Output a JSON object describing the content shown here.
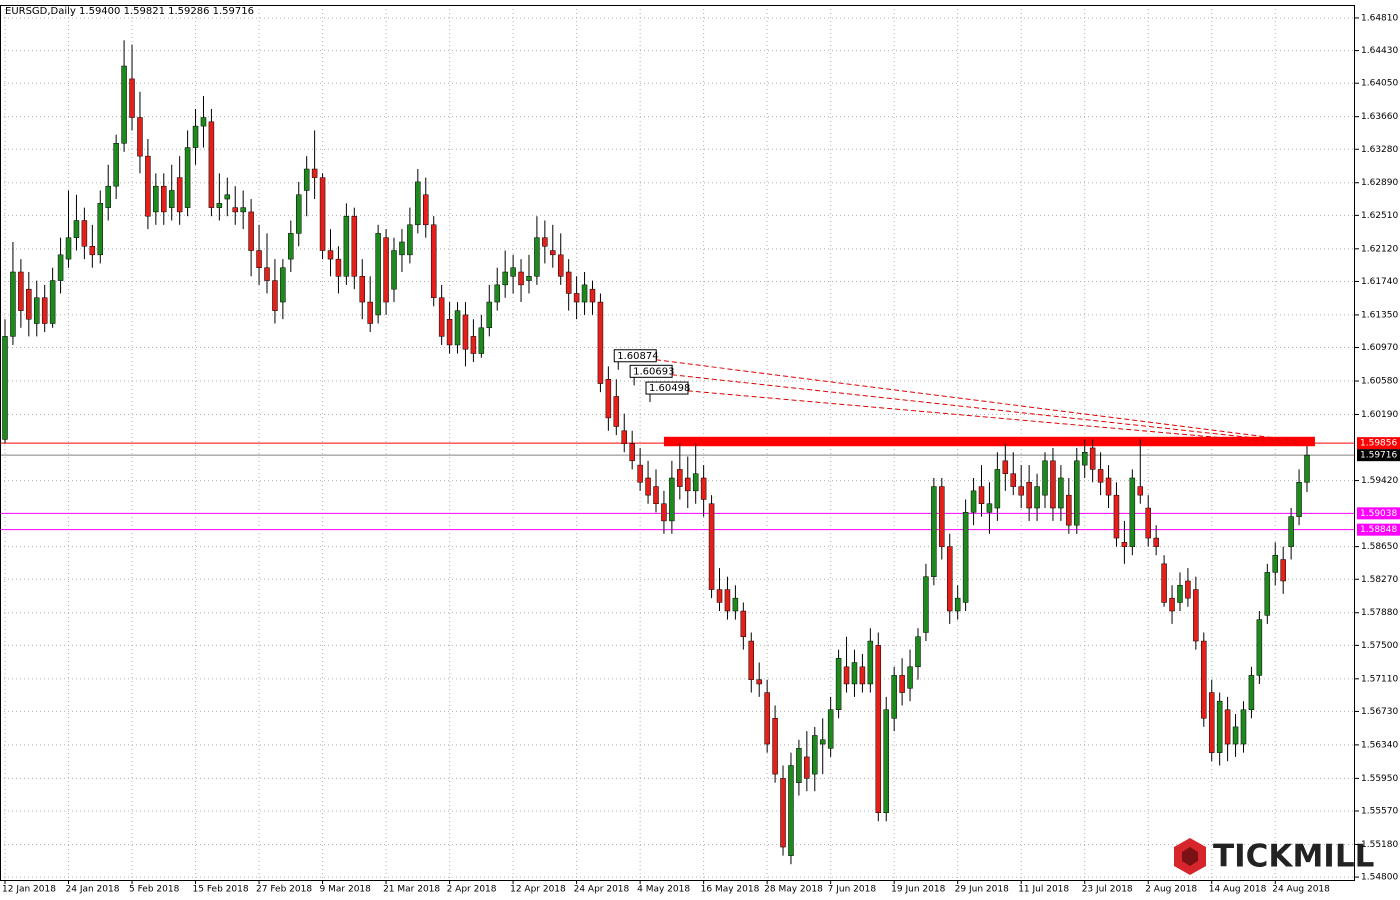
{
  "chart_data": {
    "type": "candlestick",
    "title": "EURSGD,Daily  1.59400 1.59821 1.59286 1.59716",
    "watermark": "TICKMILL",
    "up_color": "#1e8a1e",
    "down_color": "#e4201b",
    "grid": true,
    "ylim": [
      1.54766,
      1.64961
    ],
    "yticks": [
      {
        "value": 1.6481,
        "label": "1.64810"
      },
      {
        "value": 1.6443,
        "label": "1.64430"
      },
      {
        "value": 1.6405,
        "label": "1.64050"
      },
      {
        "value": 1.6366,
        "label": "1.63660"
      },
      {
        "value": 1.6328,
        "label": "1.63280"
      },
      {
        "value": 1.6289,
        "label": "1.62890"
      },
      {
        "value": 1.6251,
        "label": "1.62510"
      },
      {
        "value": 1.6212,
        "label": "1.62120"
      },
      {
        "value": 1.6174,
        "label": "1.61740"
      },
      {
        "value": 1.6135,
        "label": "1.61350"
      },
      {
        "value": 1.6097,
        "label": "1.60970"
      },
      {
        "value": 1.6058,
        "label": "1.60580"
      },
      {
        "value": 1.6019,
        "label": "1.60190"
      },
      {
        "value": 1.5942,
        "label": "1.59420"
      },
      {
        "value": 1.5865,
        "label": "1.58650"
      },
      {
        "value": 1.5827,
        "label": "1.58270"
      },
      {
        "value": 1.5788,
        "label": "1.57880"
      },
      {
        "value": 1.575,
        "label": "1.57500"
      },
      {
        "value": 1.5711,
        "label": "1.57110"
      },
      {
        "value": 1.5673,
        "label": "1.56730"
      },
      {
        "value": 1.5634,
        "label": "1.56340"
      },
      {
        "value": 1.5595,
        "label": "1.55950"
      },
      {
        "value": 1.5557,
        "label": "1.55570"
      },
      {
        "value": 1.5518,
        "label": "1.55180"
      },
      {
        "value": 1.548,
        "label": "1.54800"
      }
    ],
    "price_lines": [
      {
        "value": 1.59856,
        "color": "#ff0000"
      },
      {
        "value": 1.59716,
        "color": "#000000"
      },
      {
        "value": 1.59038,
        "color": "#ff00ff"
      },
      {
        "value": 1.58848,
        "color": "#ff00ff"
      }
    ],
    "trendlines": [
      {
        "label": 1.60874,
        "from": [
          78,
          1.60874
        ],
        "to": [
          163,
          1.5988
        ]
      },
      {
        "label": 1.60693,
        "from": [
          80,
          1.60693
        ],
        "to": [
          163,
          1.5986
        ]
      },
      {
        "label": 1.60498,
        "from": [
          82,
          1.60498
        ],
        "to": [
          163,
          1.5984
        ]
      }
    ],
    "zone": {
      "from": [
        83,
        1.5993
      ],
      "to": [
        165,
        1.5982
      ],
      "color": "#ff0000"
    },
    "categories": [
      "12 Jan 2018",
      null,
      null,
      null,
      null,
      null,
      null,
      null,
      "24 Jan 2018",
      null,
      null,
      null,
      null,
      null,
      null,
      null,
      "5 Feb 2018",
      null,
      null,
      null,
      null,
      null,
      null,
      null,
      "15 Feb 2018",
      null,
      null,
      null,
      null,
      null,
      null,
      null,
      "27 Feb 2018",
      null,
      null,
      null,
      null,
      null,
      null,
      null,
      "9 Mar 2018",
      null,
      null,
      null,
      null,
      null,
      null,
      null,
      "21 Mar 2018",
      null,
      null,
      null,
      null,
      null,
      null,
      null,
      "2 Apr 2018",
      null,
      null,
      null,
      null,
      null,
      null,
      null,
      "12 Apr 2018",
      null,
      null,
      null,
      null,
      null,
      null,
      null,
      "24 Apr 2018",
      null,
      null,
      null,
      null,
      null,
      null,
      null,
      "4 May 2018",
      null,
      null,
      null,
      null,
      null,
      null,
      null,
      "16 May 2018",
      null,
      null,
      null,
      null,
      null,
      null,
      null,
      "28 May 2018",
      null,
      null,
      null,
      null,
      null,
      null,
      null,
      "7 Jun 2018",
      null,
      null,
      null,
      null,
      null,
      null,
      null,
      "19 Jun 2018",
      null,
      null,
      null,
      null,
      null,
      null,
      null,
      "29 Jun 2018",
      null,
      null,
      null,
      null,
      null,
      null,
      null,
      "11 Jul 2018",
      null,
      null,
      null,
      null,
      null,
      null,
      null,
      "23 Jul 2018",
      null,
      null,
      null,
      null,
      null,
      null,
      null,
      "2 Aug 2018",
      null,
      null,
      null,
      null,
      null,
      null,
      null,
      "14 Aug 2018",
      null,
      null,
      null,
      null,
      null,
      null,
      null,
      "24 Aug 2018",
      null,
      null,
      null,
      null
    ],
    "ohlc": [
      [
        1.599,
        1.613,
        1.5985,
        1.611
      ],
      [
        1.611,
        1.622,
        1.61,
        1.6185
      ],
      [
        1.6185,
        1.62,
        1.612,
        1.614
      ],
      [
        1.6165,
        1.6185,
        1.611,
        1.613
      ],
      [
        1.6125,
        1.6175,
        1.611,
        1.6155
      ],
      [
        1.6155,
        1.617,
        1.6115,
        1.6125
      ],
      [
        1.6125,
        1.619,
        1.612,
        1.6175
      ],
      [
        1.6175,
        1.6225,
        1.616,
        1.6205
      ],
      [
        1.62,
        1.628,
        1.619,
        1.6225
      ],
      [
        1.6225,
        1.6275,
        1.621,
        1.6245
      ],
      [
        1.6245,
        1.626,
        1.62,
        1.6215
      ],
      [
        1.6215,
        1.624,
        1.619,
        1.6205
      ],
      [
        1.6205,
        1.628,
        1.6195,
        1.6265
      ],
      [
        1.626,
        1.631,
        1.6245,
        1.6285
      ],
      [
        1.6285,
        1.6345,
        1.627,
        1.6335
      ],
      [
        1.6335,
        1.6455,
        1.6325,
        1.6425
      ],
      [
        1.641,
        1.645,
        1.635,
        1.6365
      ],
      [
        1.6365,
        1.6395,
        1.63,
        1.632
      ],
      [
        1.632,
        1.634,
        1.6235,
        1.625
      ],
      [
        1.6255,
        1.63,
        1.624,
        1.6285
      ],
      [
        1.6285,
        1.63,
        1.624,
        1.6255
      ],
      [
        1.626,
        1.631,
        1.6245,
        1.628
      ],
      [
        1.6295,
        1.632,
        1.624,
        1.6255
      ],
      [
        1.626,
        1.635,
        1.625,
        1.633
      ],
      [
        1.633,
        1.6375,
        1.631,
        1.6355
      ],
      [
        1.6355,
        1.639,
        1.633,
        1.6365
      ],
      [
        1.636,
        1.6375,
        1.625,
        1.626
      ],
      [
        1.626,
        1.63,
        1.6245,
        1.6265
      ],
      [
        1.627,
        1.6295,
        1.625,
        1.6275
      ],
      [
        1.626,
        1.6285,
        1.624,
        1.6255
      ],
      [
        1.6255,
        1.628,
        1.6235,
        1.626
      ],
      [
        1.6255,
        1.627,
        1.618,
        1.621
      ],
      [
        1.621,
        1.624,
        1.617,
        1.619
      ],
      [
        1.619,
        1.623,
        1.616,
        1.6175
      ],
      [
        1.6175,
        1.62,
        1.6125,
        1.614
      ],
      [
        1.615,
        1.62,
        1.613,
        1.619
      ],
      [
        1.62,
        1.6245,
        1.6185,
        1.623
      ],
      [
        1.623,
        1.629,
        1.6215,
        1.6275
      ],
      [
        1.628,
        1.632,
        1.625,
        1.6305
      ],
      [
        1.6305,
        1.635,
        1.627,
        1.6295
      ],
      [
        1.6295,
        1.63,
        1.62,
        1.621
      ],
      [
        1.621,
        1.6235,
        1.618,
        1.62
      ],
      [
        1.62,
        1.6215,
        1.616,
        1.618
      ],
      [
        1.618,
        1.6265,
        1.617,
        1.625
      ],
      [
        1.625,
        1.626,
        1.6165,
        1.618
      ],
      [
        1.618,
        1.62,
        1.613,
        1.615
      ],
      [
        1.615,
        1.618,
        1.6115,
        1.6125
      ],
      [
        1.6135,
        1.624,
        1.6125,
        1.623
      ],
      [
        1.6225,
        1.6235,
        1.6135,
        1.615
      ],
      [
        1.6165,
        1.6225,
        1.615,
        1.621
      ],
      [
        1.6205,
        1.6235,
        1.6185,
        1.622
      ],
      [
        1.6205,
        1.626,
        1.6195,
        1.624
      ],
      [
        1.624,
        1.6305,
        1.623,
        1.629
      ],
      [
        1.6275,
        1.6295,
        1.6225,
        1.624
      ],
      [
        1.624,
        1.625,
        1.6145,
        1.6155
      ],
      [
        1.6155,
        1.617,
        1.61,
        1.611
      ],
      [
        1.613,
        1.615,
        1.609,
        1.61
      ],
      [
        1.61,
        1.615,
        1.609,
        1.614
      ],
      [
        1.6135,
        1.615,
        1.6075,
        1.6095
      ],
      [
        1.611,
        1.613,
        1.608,
        1.609
      ],
      [
        1.609,
        1.6135,
        1.6085,
        1.612
      ],
      [
        1.612,
        1.617,
        1.611,
        1.615
      ],
      [
        1.615,
        1.619,
        1.614,
        1.617
      ],
      [
        1.617,
        1.621,
        1.6155,
        1.6185
      ],
      [
        1.618,
        1.6205,
        1.616,
        1.619
      ],
      [
        1.6185,
        1.62,
        1.615,
        1.617
      ],
      [
        1.6175,
        1.6205,
        1.616,
        1.618
      ],
      [
        1.618,
        1.625,
        1.617,
        1.6225
      ],
      [
        1.6225,
        1.6245,
        1.6195,
        1.6215
      ],
      [
        1.621,
        1.624,
        1.619,
        1.6205
      ],
      [
        1.6205,
        1.623,
        1.617,
        1.618
      ],
      [
        1.6185,
        1.62,
        1.614,
        1.616
      ],
      [
        1.616,
        1.618,
        1.613,
        1.615
      ],
      [
        1.615,
        1.6185,
        1.6135,
        1.617
      ],
      [
        1.6165,
        1.6175,
        1.6135,
        1.615
      ],
      [
        1.615,
        1.616,
        1.6045,
        1.6055
      ],
      [
        1.606,
        1.6075,
        1.6,
        1.6015
      ],
      [
        1.604,
        1.606,
        1.5995,
        1.6005
      ],
      [
        1.6,
        1.602,
        1.5975,
        1.5985
      ],
      [
        1.5985,
        1.6,
        1.5955,
        1.5965
      ],
      [
        1.596,
        1.598,
        1.593,
        1.594
      ],
      [
        1.5945,
        1.5965,
        1.5915,
        1.5925
      ],
      [
        1.5935,
        1.5955,
        1.5905,
        1.5915
      ],
      [
        1.5915,
        1.593,
        1.588,
        1.5895
      ],
      [
        1.5895,
        1.5965,
        1.588,
        1.5945
      ],
      [
        1.5955,
        1.5985,
        1.592,
        1.5935
      ],
      [
        1.5945,
        1.597,
        1.591,
        1.593
      ],
      [
        1.593,
        1.5985,
        1.5915,
        1.595
      ],
      [
        1.5945,
        1.596,
        1.59,
        1.592
      ],
      [
        1.5915,
        1.5925,
        1.5805,
        1.5815
      ],
      [
        1.5815,
        1.584,
        1.579,
        1.58
      ],
      [
        1.5815,
        1.583,
        1.578,
        1.579
      ],
      [
        1.579,
        1.582,
        1.578,
        1.5805
      ],
      [
        1.579,
        1.58,
        1.5745,
        1.576
      ],
      [
        1.5755,
        1.5765,
        1.5695,
        1.571
      ],
      [
        1.571,
        1.573,
        1.569,
        1.5705
      ],
      [
        1.5695,
        1.571,
        1.5625,
        1.5635
      ],
      [
        1.5665,
        1.568,
        1.559,
        1.56
      ],
      [
        1.5595,
        1.561,
        1.5505,
        1.5515
      ],
      [
        1.5505,
        1.5625,
        1.5495,
        1.561
      ],
      [
        1.559,
        1.564,
        1.5575,
        1.563
      ],
      [
        1.562,
        1.565,
        1.558,
        1.5595
      ],
      [
        1.56,
        1.5655,
        1.558,
        1.5645
      ],
      [
        1.5635,
        1.5665,
        1.56,
        1.564
      ],
      [
        1.563,
        1.569,
        1.562,
        1.5675
      ],
      [
        1.5675,
        1.5745,
        1.5665,
        1.5735
      ],
      [
        1.5725,
        1.576,
        1.5695,
        1.5705
      ],
      [
        1.5705,
        1.5745,
        1.569,
        1.573
      ],
      [
        1.5725,
        1.574,
        1.5695,
        1.5705
      ],
      [
        1.5705,
        1.577,
        1.5695,
        1.5755
      ],
      [
        1.575,
        1.5765,
        1.5545,
        1.5555
      ],
      [
        1.5555,
        1.569,
        1.5545,
        1.5675
      ],
      [
        1.5665,
        1.5725,
        1.565,
        1.5715
      ],
      [
        1.5715,
        1.5735,
        1.568,
        1.5695
      ],
      [
        1.57,
        1.5745,
        1.5685,
        1.5725
      ],
      [
        1.5725,
        1.577,
        1.571,
        1.576
      ],
      [
        1.5765,
        1.5845,
        1.5755,
        1.583
      ],
      [
        1.583,
        1.5945,
        1.582,
        1.5935
      ],
      [
        1.5935,
        1.5945,
        1.585,
        1.5865
      ],
      [
        1.5865,
        1.588,
        1.5775,
        1.579
      ],
      [
        1.579,
        1.582,
        1.578,
        1.5805
      ],
      [
        1.58,
        1.592,
        1.579,
        1.5905
      ],
      [
        1.5905,
        1.5945,
        1.589,
        1.593
      ],
      [
        1.5935,
        1.596,
        1.59,
        1.5915
      ],
      [
        1.5905,
        1.594,
        1.588,
        1.5915
      ],
      [
        1.591,
        1.5975,
        1.5895,
        1.5955
      ],
      [
        1.5965,
        1.5985,
        1.593,
        1.595
      ],
      [
        1.595,
        1.5975,
        1.5925,
        1.5935
      ],
      [
        1.5935,
        1.596,
        1.591,
        1.5925
      ],
      [
        1.594,
        1.596,
        1.5895,
        1.591
      ],
      [
        1.591,
        1.595,
        1.5895,
        1.5935
      ],
      [
        1.5925,
        1.5975,
        1.591,
        1.5965
      ],
      [
        1.5965,
        1.598,
        1.5895,
        1.591
      ],
      [
        1.591,
        1.596,
        1.5895,
        1.5945
      ],
      [
        1.5925,
        1.5945,
        1.588,
        1.589
      ],
      [
        1.589,
        1.598,
        1.588,
        1.5965
      ],
      [
        1.596,
        1.599,
        1.5945,
        1.5975
      ],
      [
        1.598,
        1.599,
        1.594,
        1.5955
      ],
      [
        1.5955,
        1.5975,
        1.5925,
        1.594
      ],
      [
        1.5945,
        1.596,
        1.591,
        1.5925
      ],
      [
        1.5925,
        1.594,
        1.5865,
        1.5875
      ],
      [
        1.587,
        1.5895,
        1.5845,
        1.5865
      ],
      [
        1.5865,
        1.5955,
        1.5855,
        1.5945
      ],
      [
        1.5935,
        1.599,
        1.5915,
        1.5925
      ],
      [
        1.591,
        1.5925,
        1.5865,
        1.5875
      ],
      [
        1.5875,
        1.589,
        1.5855,
        1.5865
      ],
      [
        1.5845,
        1.5855,
        1.5795,
        1.58
      ],
      [
        1.5805,
        1.582,
        1.5775,
        1.579
      ],
      [
        1.58,
        1.5835,
        1.579,
        1.582
      ],
      [
        1.5825,
        1.584,
        1.5795,
        1.5805
      ],
      [
        1.5815,
        1.583,
        1.5745,
        1.5755
      ],
      [
        1.5755,
        1.5765,
        1.5655,
        1.5665
      ],
      [
        1.5695,
        1.571,
        1.5615,
        1.5625
      ],
      [
        1.5625,
        1.5695,
        1.561,
        1.5685
      ],
      [
        1.5675,
        1.569,
        1.5615,
        1.5635
      ],
      [
        1.5635,
        1.567,
        1.562,
        1.5655
      ],
      [
        1.5635,
        1.5685,
        1.5625,
        1.5675
      ],
      [
        1.5675,
        1.5725,
        1.5665,
        1.5715
      ],
      [
        1.5715,
        1.579,
        1.5705,
        1.578
      ],
      [
        1.5785,
        1.5845,
        1.5775,
        1.5835
      ],
      [
        1.5835,
        1.587,
        1.582,
        1.5855
      ],
      [
        1.585,
        1.5865,
        1.581,
        1.5825
      ],
      [
        1.5865,
        1.591,
        1.585,
        1.59
      ],
      [
        1.59,
        1.5955,
        1.589,
        1.594
      ],
      [
        1.594,
        1.59821,
        1.59286,
        1.59716
      ]
    ]
  }
}
